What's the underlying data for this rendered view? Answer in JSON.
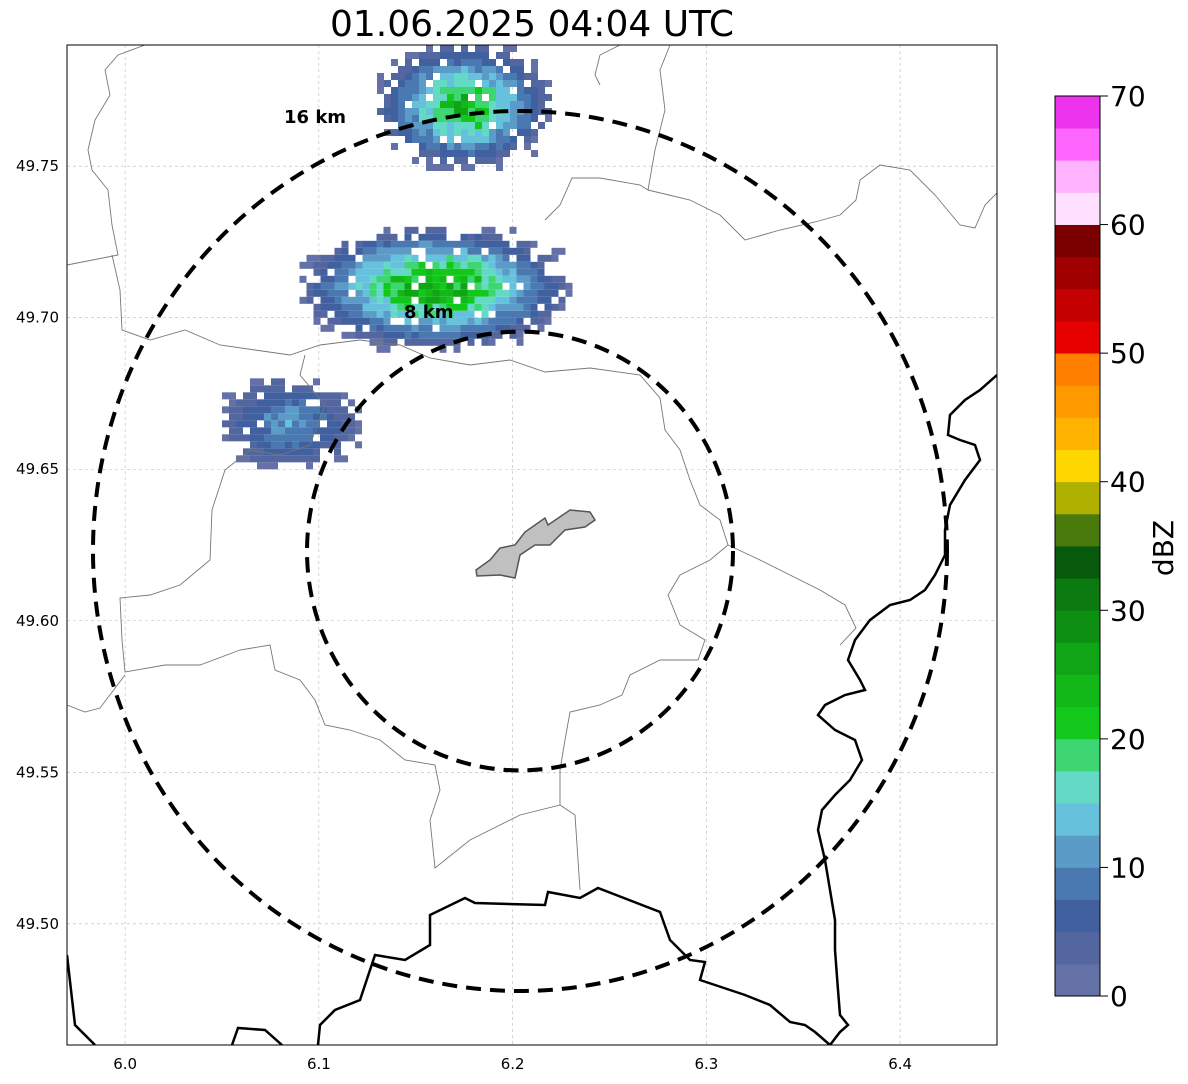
{
  "title": "01.06.2025 04:04 UTC",
  "map": {
    "xlim": [
      5.97,
      6.45
    ],
    "ylim": [
      49.46,
      49.79
    ],
    "x_ticks": [
      "6.0",
      "6.1",
      "6.2",
      "6.3",
      "6.4"
    ],
    "x_tick_values": [
      6.0,
      6.1,
      6.2,
      6.3,
      6.4
    ],
    "y_ticks": [
      "49.50",
      "49.55",
      "49.60",
      "49.65",
      "49.70",
      "49.75"
    ],
    "y_tick_values": [
      49.5,
      49.55,
      49.6,
      49.65,
      49.7,
      49.75
    ],
    "grid": true,
    "grid_style": "dashed",
    "radar_center": {
      "lon": 6.2,
      "lat": 49.623
    },
    "range_rings": [
      {
        "label": "8 km",
        "radius_km": 8
      },
      {
        "label": "16 km",
        "radius_km": 16
      }
    ],
    "city_fill_color": "#c0c0c0"
  },
  "colorbar": {
    "label": "dBZ",
    "min": 0,
    "max": 70,
    "step": 2.5,
    "tick_labels": [
      "0",
      "10",
      "20",
      "30",
      "40",
      "50",
      "60",
      "70"
    ],
    "tick_values": [
      0,
      10,
      20,
      30,
      40,
      50,
      60,
      70
    ],
    "colors": [
      "#6371a6",
      "#53669f",
      "#4060a0",
      "#4a78b0",
      "#5a9bc8",
      "#66c1dc",
      "#63d9c6",
      "#3dd672",
      "#12c81b",
      "#12b818",
      "#10a515",
      "#0d8f12",
      "#0b7a10",
      "#075a0b",
      "#4a7a0b",
      "#b0b000",
      "#ffd700",
      "#ffb300",
      "#ff9900",
      "#ff7f00",
      "#e60000",
      "#c40000",
      "#a00000",
      "#7a0000",
      "#ffe0ff",
      "#ffb3ff",
      "#ff66ff",
      "#ee33ee"
    ]
  },
  "chart_data": {
    "type": "heatmap",
    "title": "01.06.2025 04:04 UTC",
    "xlabel": "",
    "ylabel": "",
    "xlim": [
      5.97,
      6.45
    ],
    "ylim": [
      49.46,
      49.79
    ],
    "colorbar_label": "dBZ",
    "colorbar_range": [
      0,
      70
    ],
    "echo_cells": [
      {
        "region": "north",
        "lon_range": [
          6.13,
          6.22
        ],
        "lat_range": [
          49.75,
          49.79
        ],
        "max_dbz": 27
      },
      {
        "region": "north-central",
        "lon_range": [
          6.09,
          6.23
        ],
        "lat_range": [
          49.69,
          49.73
        ],
        "max_dbz": 30
      },
      {
        "region": "west",
        "lon_range": [
          6.05,
          6.12
        ],
        "lat_range": [
          49.65,
          49.68
        ],
        "max_dbz": 13
      }
    ]
  }
}
